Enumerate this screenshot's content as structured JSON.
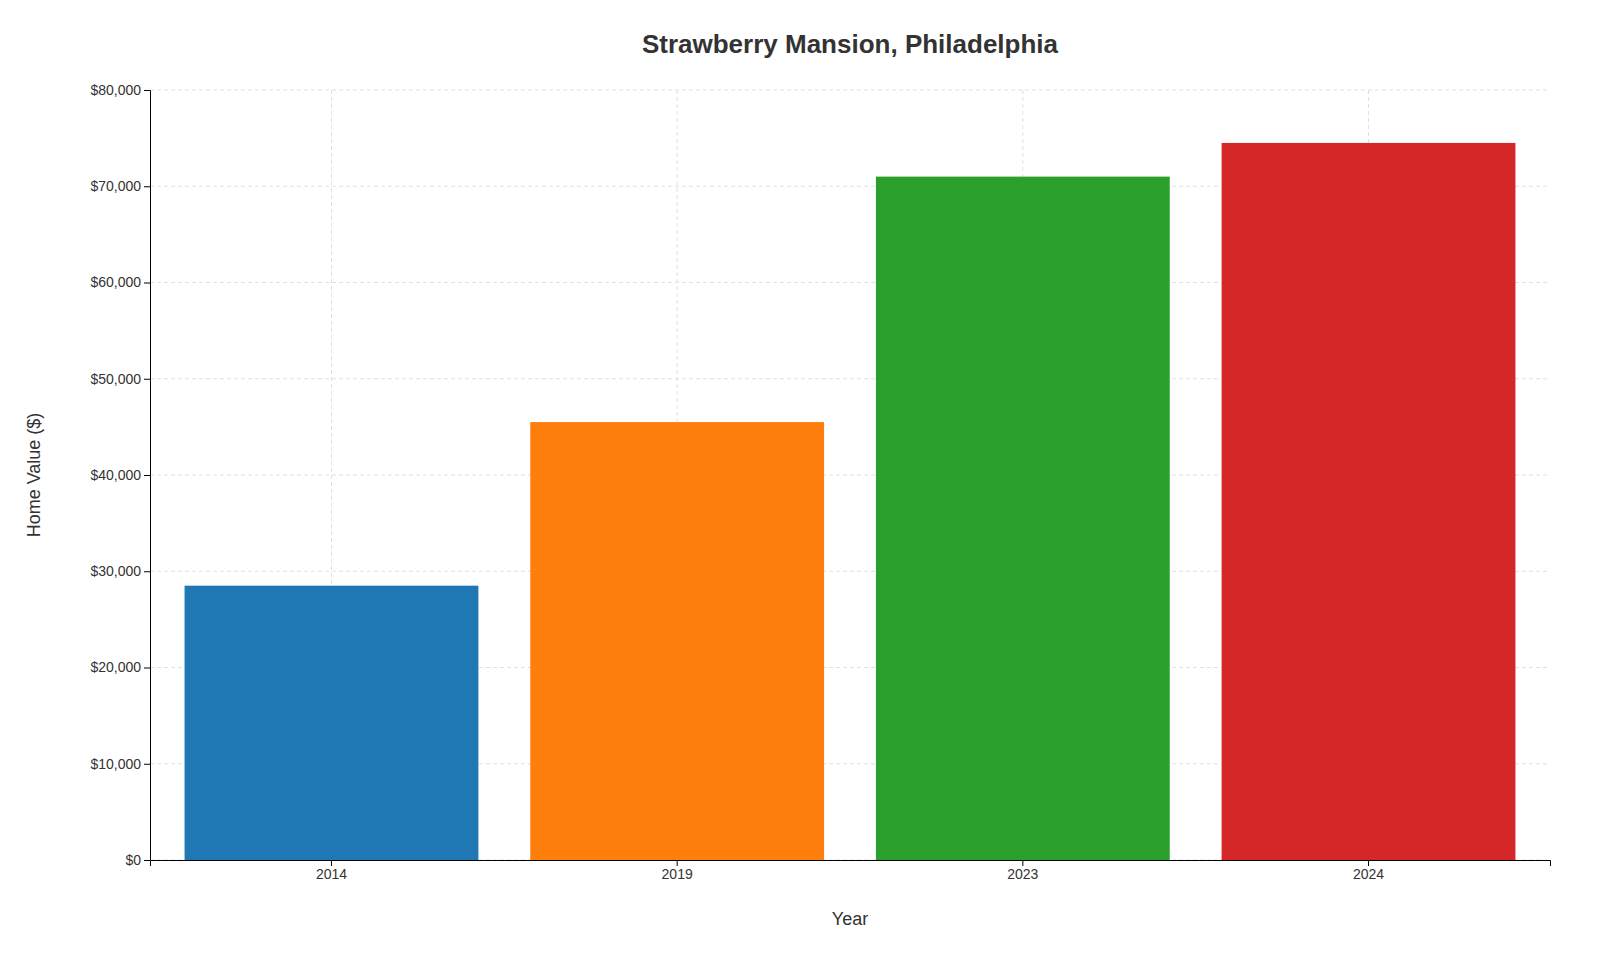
{
  "chart_data": {
    "type": "bar",
    "title": "Strawberry Mansion, Philadelphia",
    "x_label": "Year",
    "y_label": "Home Value ($)",
    "categories": [
      "2014",
      "2019",
      "2023",
      "2024"
    ],
    "values": [
      28500,
      45500,
      71000,
      74500
    ],
    "colors": [
      "#1f77b4",
      "#ff7f0e",
      "#2ca02c",
      "#d62728"
    ],
    "ylim": [
      0,
      80000
    ],
    "yticks": [
      {
        "value": 0,
        "label": "$0"
      },
      {
        "value": 10000,
        "label": "$10,000"
      },
      {
        "value": 20000,
        "label": "$20,000"
      },
      {
        "value": 30000,
        "label": "$30,000"
      },
      {
        "value": 40000,
        "label": "$40,000"
      },
      {
        "value": 50000,
        "label": "$50,000"
      },
      {
        "value": 60000,
        "label": "$60,000"
      },
      {
        "value": 70000,
        "label": "$70,000"
      },
      {
        "value": 80000,
        "label": "$80,000"
      }
    ],
    "grid": true
  }
}
